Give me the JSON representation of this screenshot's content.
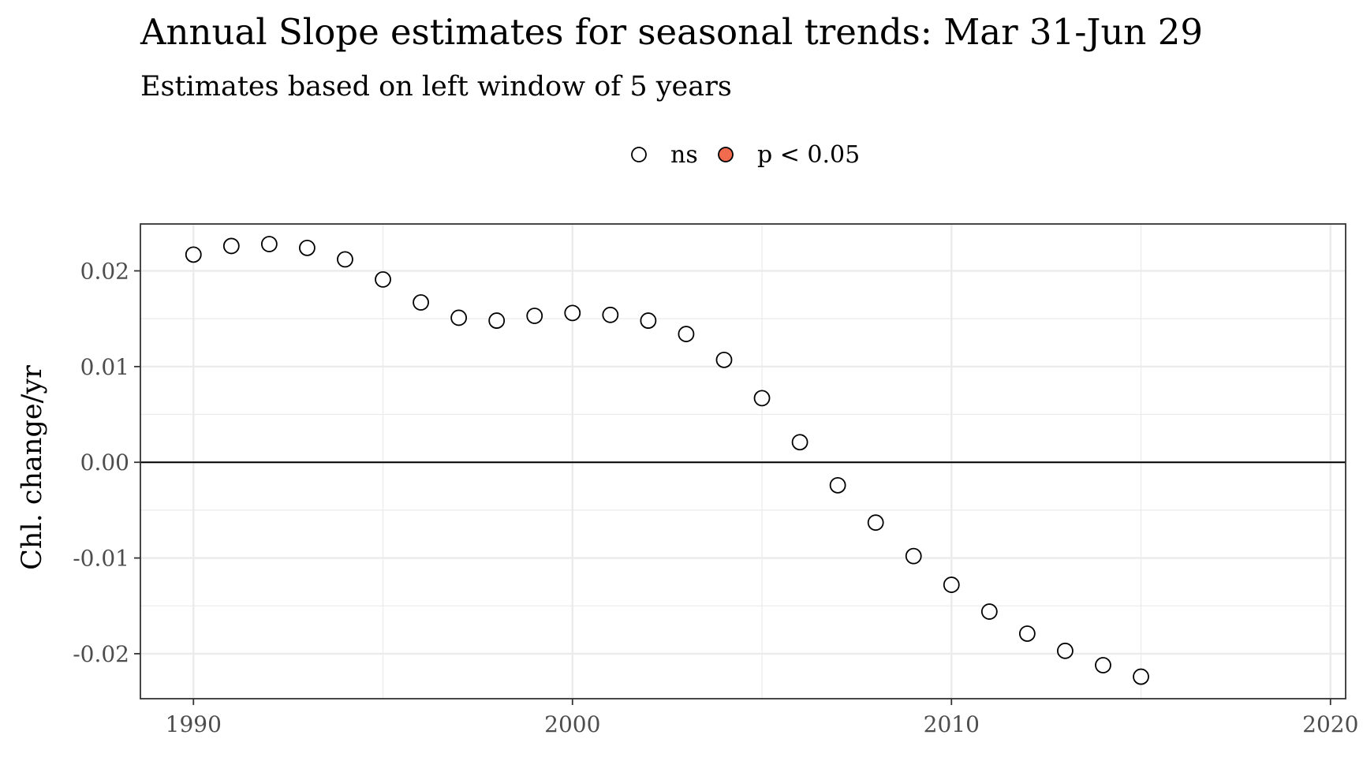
{
  "chart_data": {
    "type": "scatter",
    "title": "Annual Slope estimates for seasonal trends: Mar 31-Jun 29",
    "subtitle": "Estimates based on left window of 5 years",
    "xlabel": "",
    "ylabel": "Chl. change/yr",
    "xlim": [
      1988.6,
      2020.4
    ],
    "ylim": [
      -0.0247,
      0.0249
    ],
    "x_ticks": [
      1990,
      2000,
      2010,
      2020
    ],
    "x_tick_labels": [
      "1990",
      "2000",
      "2010",
      "2020"
    ],
    "y_ticks": [
      -0.02,
      -0.01,
      0.0,
      0.01,
      0.02
    ],
    "y_tick_labels": [
      "-0.02",
      "-0.01",
      "0.00",
      "0.01",
      "0.02"
    ],
    "grid": true,
    "reference_line_y": 0,
    "legend_position": "top",
    "legend": [
      {
        "label": "ns",
        "fill": "#ffffff"
      },
      {
        "label": "p < 0.05",
        "fill": "#f26b4f"
      }
    ],
    "series": [
      {
        "name": "ns",
        "fill": "#ffffff",
        "x": [
          1990,
          1991,
          1992,
          1993,
          1994,
          1995,
          1996,
          1997,
          1998,
          1999,
          2000,
          2001,
          2002,
          2003,
          2004,
          2005,
          2006,
          2007,
          2008,
          2009,
          2010,
          2011,
          2012,
          2013,
          2014,
          2015
        ],
        "y": [
          0.0217,
          0.0226,
          0.0228,
          0.0224,
          0.0212,
          0.0191,
          0.0167,
          0.0151,
          0.0148,
          0.0153,
          0.0156,
          0.0154,
          0.0148,
          0.0134,
          0.0107,
          0.0067,
          0.0021,
          -0.0024,
          -0.0063,
          -0.0098,
          -0.0128,
          -0.0156,
          -0.0179,
          -0.0197,
          -0.0212,
          -0.0224
        ]
      }
    ]
  }
}
